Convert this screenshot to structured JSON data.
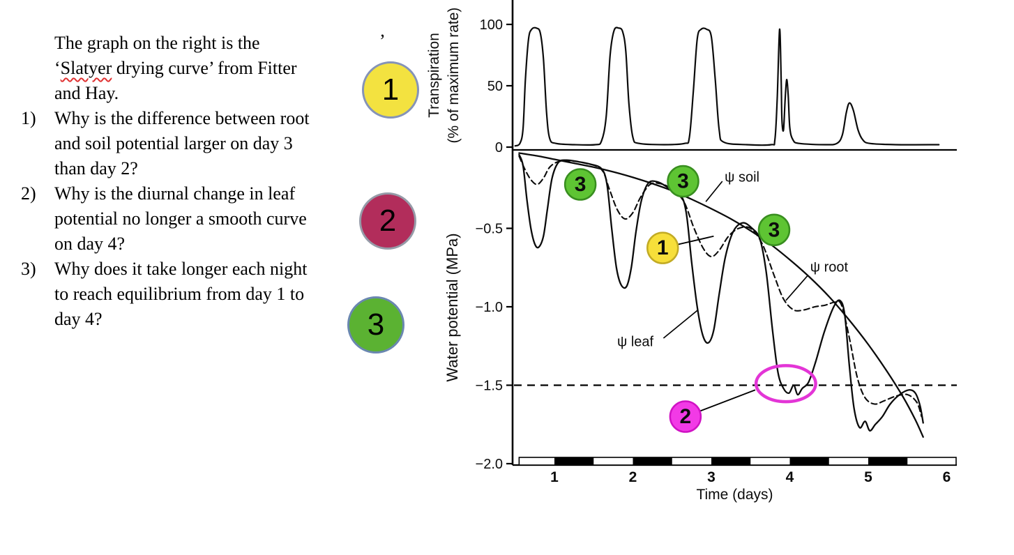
{
  "stray_mark": "’",
  "left_panel": {
    "intro": {
      "line1": "The graph on the right is the",
      "line2_open": "‘",
      "line2_word": "Slatyer",
      "line2_rest": " drying curve’ from Fitter",
      "line3": "and Hay."
    },
    "questions": [
      {
        "number": "1)",
        "lines": [
          "Why is the difference between root",
          "and soil potential larger on day 3",
          "than day 2?"
        ]
      },
      {
        "number": "2)",
        "lines": [
          "Why is the diurnal change in leaf",
          "potential no longer a smooth curve",
          "on day 4?"
        ]
      },
      {
        "number": "3)",
        "lines": [
          "Why does it take longer each night",
          "to reach equilibrium from day 1 to",
          "day 4?"
        ]
      }
    ],
    "badges": [
      {
        "label": "1",
        "fill": "#f3e240",
        "border": "#8593b8"
      },
      {
        "label": "2",
        "fill": "#b22d5b",
        "border": "#969ba8"
      },
      {
        "label": "3",
        "fill": "#5bb232",
        "border": "#6a87b0"
      }
    ]
  },
  "chart_data": {
    "type": "line",
    "title": "Slatyer drying curve (from Fitter and Hay)",
    "x_axis": {
      "label": "Time (days)",
      "ticks": [
        1,
        2,
        3,
        4,
        5,
        6
      ],
      "range": [
        0.5,
        6.1
      ]
    },
    "top_panel": {
      "y_axis_label_line1": "Transpiration",
      "y_axis_label_line2": "(% of maximum rate)",
      "ylim": [
        0,
        100
      ],
      "y_ticks": [
        {
          "v": 100,
          "label": "100"
        },
        {
          "v": 50,
          "label": "50"
        },
        {
          "v": 0,
          "label": "0"
        }
      ],
      "series": [
        {
          "name": "transpiration",
          "style": "solid",
          "points": [
            [
              0.5,
              1
            ],
            [
              0.56,
              3
            ],
            [
              0.6,
              15
            ],
            [
              0.63,
              55
            ],
            [
              0.67,
              88
            ],
            [
              0.71,
              96
            ],
            [
              0.77,
              97
            ],
            [
              0.82,
              93
            ],
            [
              0.86,
              72
            ],
            [
              0.9,
              28
            ],
            [
              0.94,
              7
            ],
            [
              1.02,
              3
            ],
            [
              1.25,
              2
            ],
            [
              1.52,
              2
            ],
            [
              1.6,
              5
            ],
            [
              1.66,
              25
            ],
            [
              1.71,
              75
            ],
            [
              1.76,
              95
            ],
            [
              1.82,
              97
            ],
            [
              1.87,
              94
            ],
            [
              1.91,
              78
            ],
            [
              1.95,
              35
            ],
            [
              2,
              8
            ],
            [
              2.08,
              3
            ],
            [
              2.4,
              2
            ],
            [
              2.66,
              3
            ],
            [
              2.72,
              8
            ],
            [
              2.77,
              45
            ],
            [
              2.82,
              88
            ],
            [
              2.87,
              96
            ],
            [
              2.94,
              96
            ],
            [
              3,
              90
            ],
            [
              3.05,
              55
            ],
            [
              3.1,
              14
            ],
            [
              3.16,
              4
            ],
            [
              3.45,
              2
            ],
            [
              3.76,
              2
            ],
            [
              3.81,
              6
            ],
            [
              3.84,
              40
            ],
            [
              3.87,
              96
            ],
            [
              3.89,
              55
            ],
            [
              3.9,
              22
            ],
            [
              3.92,
              14
            ],
            [
              3.94,
              38
            ],
            [
              3.96,
              55
            ],
            [
              3.98,
              42
            ],
            [
              4,
              16
            ],
            [
              4.04,
              6
            ],
            [
              4.12,
              3
            ],
            [
              4.45,
              2
            ],
            [
              4.6,
              3
            ],
            [
              4.67,
              10
            ],
            [
              4.72,
              28
            ],
            [
              4.76,
              36
            ],
            [
              4.81,
              30
            ],
            [
              4.87,
              14
            ],
            [
              4.93,
              6
            ],
            [
              5.02,
              3
            ],
            [
              5.35,
              2
            ],
            [
              5.9,
              2
            ]
          ]
        }
      ]
    },
    "bottom_panel": {
      "y_axis_label": "Water potential (MPa)",
      "ylim": [
        0,
        -2.0
      ],
      "y_ticks": [
        {
          "v": -0.5,
          "label": "−0.5"
        },
        {
          "v": -1.0,
          "label": "−1.0"
        },
        {
          "v": -1.5,
          "label": "−1.5"
        },
        {
          "v": -2.0,
          "label": "−2.0"
        }
      ],
      "wilting_line_mpa": -1.5,
      "series": [
        {
          "name": "psi_soil",
          "label": "ψ soil",
          "style": "solid",
          "points": [
            [
              0.55,
              -0.02
            ],
            [
              0.8,
              -0.04
            ],
            [
              1,
              -0.06
            ],
            [
              1.25,
              -0.085
            ],
            [
              1.5,
              -0.11
            ],
            [
              1.75,
              -0.14
            ],
            [
              2,
              -0.175
            ],
            [
              2.25,
              -0.215
            ],
            [
              2.5,
              -0.26
            ],
            [
              2.75,
              -0.315
            ],
            [
              3,
              -0.375
            ],
            [
              3.25,
              -0.44
            ],
            [
              3.5,
              -0.515
            ],
            [
              3.75,
              -0.6
            ],
            [
              4,
              -0.7
            ],
            [
              4.25,
              -0.81
            ],
            [
              4.5,
              -0.935
            ],
            [
              4.75,
              -1.08
            ],
            [
              5,
              -1.24
            ],
            [
              5.25,
              -1.42
            ],
            [
              5.45,
              -1.58
            ],
            [
              5.6,
              -1.72
            ],
            [
              5.7,
              -1.83
            ]
          ]
        },
        {
          "name": "psi_root",
          "label": "ψ root",
          "style": "dashed",
          "points": [
            [
              0.55,
              -0.04
            ],
            [
              0.62,
              -0.12
            ],
            [
              0.7,
              -0.19
            ],
            [
              0.78,
              -0.22
            ],
            [
              0.86,
              -0.18
            ],
            [
              0.94,
              -0.11
            ],
            [
              1.05,
              -0.075
            ],
            [
              1.2,
              -0.07
            ],
            [
              1.4,
              -0.085
            ],
            [
              1.6,
              -0.125
            ],
            [
              1.7,
              -0.25
            ],
            [
              1.8,
              -0.38
            ],
            [
              1.9,
              -0.44
            ],
            [
              2,
              -0.4
            ],
            [
              2.1,
              -0.3
            ],
            [
              2.22,
              -0.22
            ],
            [
              2.35,
              -0.215
            ],
            [
              2.5,
              -0.25
            ],
            [
              2.65,
              -0.33
            ],
            [
              2.78,
              -0.5
            ],
            [
              2.9,
              -0.63
            ],
            [
              3,
              -0.68
            ],
            [
              3.1,
              -0.64
            ],
            [
              3.22,
              -0.55
            ],
            [
              3.35,
              -0.5
            ],
            [
              3.5,
              -0.5
            ],
            [
              3.65,
              -0.6
            ],
            [
              3.8,
              -0.8
            ],
            [
              3.92,
              -0.95
            ],
            [
              4.05,
              -1.02
            ],
            [
              4.18,
              -1.02
            ],
            [
              4.32,
              -1
            ],
            [
              4.45,
              -0.99
            ],
            [
              4.58,
              -0.97
            ],
            [
              4.66,
              -0.99
            ],
            [
              4.76,
              -1.2
            ],
            [
              4.86,
              -1.45
            ],
            [
              4.96,
              -1.58
            ],
            [
              5.08,
              -1.62
            ],
            [
              5.2,
              -1.6
            ],
            [
              5.35,
              -1.57
            ],
            [
              5.5,
              -1.56
            ],
            [
              5.62,
              -1.61
            ],
            [
              5.68,
              -1.7
            ]
          ]
        },
        {
          "name": "psi_leaf",
          "label": "ψ leaf",
          "style": "solid",
          "points": [
            [
              0.55,
              -0.03
            ],
            [
              0.6,
              -0.1
            ],
            [
              0.65,
              -0.32
            ],
            [
              0.7,
              -0.5
            ],
            [
              0.75,
              -0.6
            ],
            [
              0.8,
              -0.62
            ],
            [
              0.86,
              -0.55
            ],
            [
              0.91,
              -0.38
            ],
            [
              0.97,
              -0.18
            ],
            [
              1.05,
              -0.08
            ],
            [
              1.15,
              -0.065
            ],
            [
              1.3,
              -0.075
            ],
            [
              1.45,
              -0.09
            ],
            [
              1.6,
              -0.12
            ],
            [
              1.67,
              -0.22
            ],
            [
              1.73,
              -0.5
            ],
            [
              1.79,
              -0.75
            ],
            [
              1.85,
              -0.86
            ],
            [
              1.92,
              -0.87
            ],
            [
              1.98,
              -0.75
            ],
            [
              2.04,
              -0.52
            ],
            [
              2.11,
              -0.32
            ],
            [
              2.2,
              -0.21
            ],
            [
              2.32,
              -0.205
            ],
            [
              2.45,
              -0.24
            ],
            [
              2.6,
              -0.28
            ],
            [
              2.68,
              -0.4
            ],
            [
              2.75,
              -0.72
            ],
            [
              2.82,
              -1
            ],
            [
              2.89,
              -1.18
            ],
            [
              2.96,
              -1.23
            ],
            [
              3.03,
              -1.15
            ],
            [
              3.1,
              -0.92
            ],
            [
              3.18,
              -0.68
            ],
            [
              3.28,
              -0.52
            ],
            [
              3.4,
              -0.465
            ],
            [
              3.52,
              -0.5
            ],
            [
              3.62,
              -0.57
            ],
            [
              3.7,
              -0.78
            ],
            [
              3.78,
              -1.15
            ],
            [
              3.85,
              -1.42
            ],
            [
              3.92,
              -1.52
            ],
            [
              3.99,
              -1.55
            ],
            [
              4.05,
              -1.5
            ],
            [
              4.1,
              -1.56
            ],
            [
              4.16,
              -1.52
            ],
            [
              4.24,
              -1.48
            ],
            [
              4.33,
              -1.35
            ],
            [
              4.44,
              -1.16
            ],
            [
              4.56,
              -1
            ],
            [
              4.64,
              -0.96
            ],
            [
              4.7,
              -1.05
            ],
            [
              4.76,
              -1.38
            ],
            [
              4.82,
              -1.65
            ],
            [
              4.89,
              -1.77
            ],
            [
              4.96,
              -1.73
            ],
            [
              5.02,
              -1.79
            ],
            [
              5.09,
              -1.75
            ],
            [
              5.18,
              -1.7
            ],
            [
              5.28,
              -1.62
            ],
            [
              5.4,
              -1.56
            ],
            [
              5.52,
              -1.53
            ],
            [
              5.6,
              -1.55
            ],
            [
              5.66,
              -1.63
            ],
            [
              5.7,
              -1.74
            ]
          ]
        }
      ]
    },
    "night_bar": {
      "range": [
        0.55,
        6.12
      ],
      "black_segments": [
        [
          1,
          1.5
        ],
        [
          2,
          2.5
        ],
        [
          3,
          3.5
        ],
        [
          4,
          4.5
        ],
        [
          5,
          5.5
        ]
      ]
    },
    "curve_labels": [
      {
        "text": "ψ soil",
        "t": 3.17,
        "psi": -0.17,
        "leader": [
          [
            3.14,
            -0.2
          ],
          [
            2.93,
            -0.33
          ]
        ]
      },
      {
        "text": "ψ root",
        "t": 4.26,
        "psi": -0.745,
        "leader": [
          [
            4.23,
            -0.8
          ],
          [
            3.95,
            -0.96
          ]
        ]
      },
      {
        "text": "ψ leaf",
        "t": 1.8,
        "psi": -1.22,
        "leader": [
          [
            2.39,
            -1.2
          ],
          [
            2.83,
            -1.02
          ]
        ]
      }
    ],
    "circle_annotations": [
      {
        "label": "3",
        "fill": "#5ec433",
        "border": "#388e1f",
        "t": 1.33,
        "psi": -0.22
      },
      {
        "label": "3",
        "fill": "#5ec433",
        "border": "#388e1f",
        "t": 2.64,
        "psi": -0.2
      },
      {
        "label": "3",
        "fill": "#5ec433",
        "border": "#388e1f",
        "t": 3.8,
        "psi": -0.51
      },
      {
        "label": "1",
        "fill": "#f7df3a",
        "border": "#c2ab24",
        "t": 2.38,
        "psi": -0.625,
        "leader_to": {
          "t": 3.03,
          "psi": -0.55
        }
      },
      {
        "label": "2",
        "fill": "#f23ae6",
        "border": "#d012c4",
        "t": 2.67,
        "psi": -1.7,
        "leader_to": {
          "t": 3.56,
          "psi": -1.53
        }
      }
    ],
    "highlight_ellipse": {
      "t": 3.95,
      "psi": -1.49,
      "rx_days": 0.38,
      "ry_mpa": 0.115,
      "color": "#e335d6"
    }
  }
}
